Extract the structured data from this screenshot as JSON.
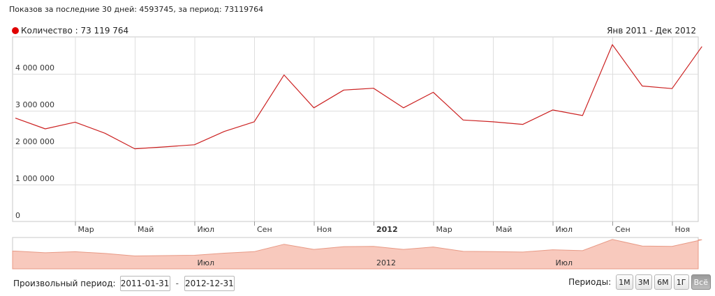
{
  "header": {
    "summary": "Показов за последние 30 дней: 4593745, за период: 73119764"
  },
  "legend": {
    "series_label": "Количество : 73 119 764",
    "range_label": "Янв 2011 - Дек 2012",
    "color": "#e00000"
  },
  "controls": {
    "custom_period_label": "Произвольный период:",
    "date_from": "2011-01-31",
    "date_to": "2012-12-31",
    "dash": "-",
    "periods_label": "Периоды:",
    "period_buttons": [
      {
        "label": "1M",
        "active": false
      },
      {
        "label": "3M",
        "active": false
      },
      {
        "label": "6M",
        "active": false
      },
      {
        "label": "1Г",
        "active": false
      },
      {
        "label": "Всё",
        "active": true
      }
    ]
  },
  "chart_data": {
    "type": "line",
    "title": "",
    "series": [
      {
        "name": "Количество",
        "color": "#cc2222",
        "x": [
          "2011-01",
          "2011-02",
          "2011-03",
          "2011-04",
          "2011-05",
          "2011-06",
          "2011-07",
          "2011-08",
          "2011-09",
          "2011-10",
          "2011-11",
          "2011-12",
          "2012-01",
          "2012-02",
          "2012-03",
          "2012-04",
          "2012-05",
          "2012-06",
          "2012-07",
          "2012-08",
          "2012-09",
          "2012-10",
          "2012-11",
          "2012-12"
        ],
        "values": [
          2800000,
          2510000,
          2690000,
          2390000,
          1970000,
          2020000,
          2080000,
          2440000,
          2700000,
          3970000,
          3080000,
          3560000,
          3610000,
          3080000,
          3500000,
          2750000,
          2700000,
          2630000,
          3020000,
          2870000,
          4790000,
          3670000,
          3600000,
          4740000
        ]
      }
    ],
    "ylim": [
      0,
      5000000
    ],
    "y_ticks": [
      {
        "value": 0,
        "label": "0"
      },
      {
        "value": 1000000,
        "label": "1 000 000"
      },
      {
        "value": 2000000,
        "label": "2 000 000"
      },
      {
        "value": 3000000,
        "label": "3 000 000"
      },
      {
        "value": 4000000,
        "label": "4 000 000"
      }
    ],
    "x_ticks": [
      {
        "label": "Мар",
        "bold": false
      },
      {
        "label": "Май",
        "bold": false
      },
      {
        "label": "Июл",
        "bold": false
      },
      {
        "label": "Сен",
        "bold": false
      },
      {
        "label": "Ноя",
        "bold": false
      },
      {
        "label": "2012",
        "bold": true
      },
      {
        "label": "Мар",
        "bold": false
      },
      {
        "label": "Май",
        "bold": false
      },
      {
        "label": "Июл",
        "bold": false
      },
      {
        "label": "Сен",
        "bold": false
      },
      {
        "label": "Ноя",
        "bold": false
      }
    ],
    "navigator_labels": [
      "Июл",
      "2012",
      "Июл"
    ],
    "grid": true,
    "legend_position": "top-left"
  }
}
